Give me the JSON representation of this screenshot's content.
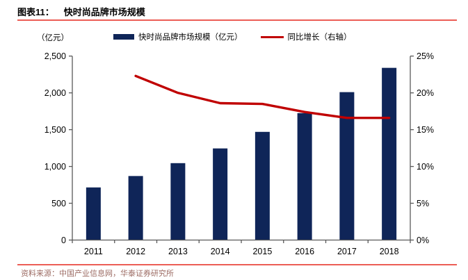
{
  "header": {
    "label": "图表11：",
    "title": "快时尚品牌市场规模"
  },
  "legend": {
    "bar_label": "快时尚品牌市场规模（亿元）",
    "line_label": "同比增长（右轴）"
  },
  "chart_data": {
    "type": "bar+line",
    "title": "快时尚品牌市场规模",
    "categories": [
      "2011",
      "2012",
      "2013",
      "2014",
      "2015",
      "2016",
      "2017",
      "2018"
    ],
    "series": [
      {
        "name": "快时尚品牌市场规模（亿元）",
        "type": "bar",
        "axis": "left",
        "values": [
          715,
          870,
          1045,
          1245,
          1470,
          1725,
          2010,
          2340
        ]
      },
      {
        "name": "同比增长（右轴）",
        "type": "line",
        "axis": "right",
        "values": [
          null,
          22.3,
          20.0,
          18.6,
          18.5,
          17.4,
          16.6,
          16.6
        ]
      }
    ],
    "left_axis": {
      "unit": "（亿元）",
      "min": 0,
      "max": 2500,
      "tick_step": 500,
      "ticks": [
        "0",
        "500",
        "1,000",
        "1,500",
        "2,000",
        "2,500"
      ]
    },
    "right_axis": {
      "min": 0,
      "max": 25,
      "tick_step": 5,
      "ticks": [
        "0%",
        "5%",
        "10%",
        "15%",
        "20%",
        "25%"
      ]
    },
    "grid": false,
    "legend_position": "top"
  },
  "source": {
    "text": "资料来源：中国产业信息网，华泰证券研究所"
  },
  "colors": {
    "bar": "#0F2558",
    "line": "#C00000",
    "rule": "#EC5D55",
    "axis": "#595959",
    "tick_label": "#000000",
    "source_text": "#9C6B63"
  }
}
